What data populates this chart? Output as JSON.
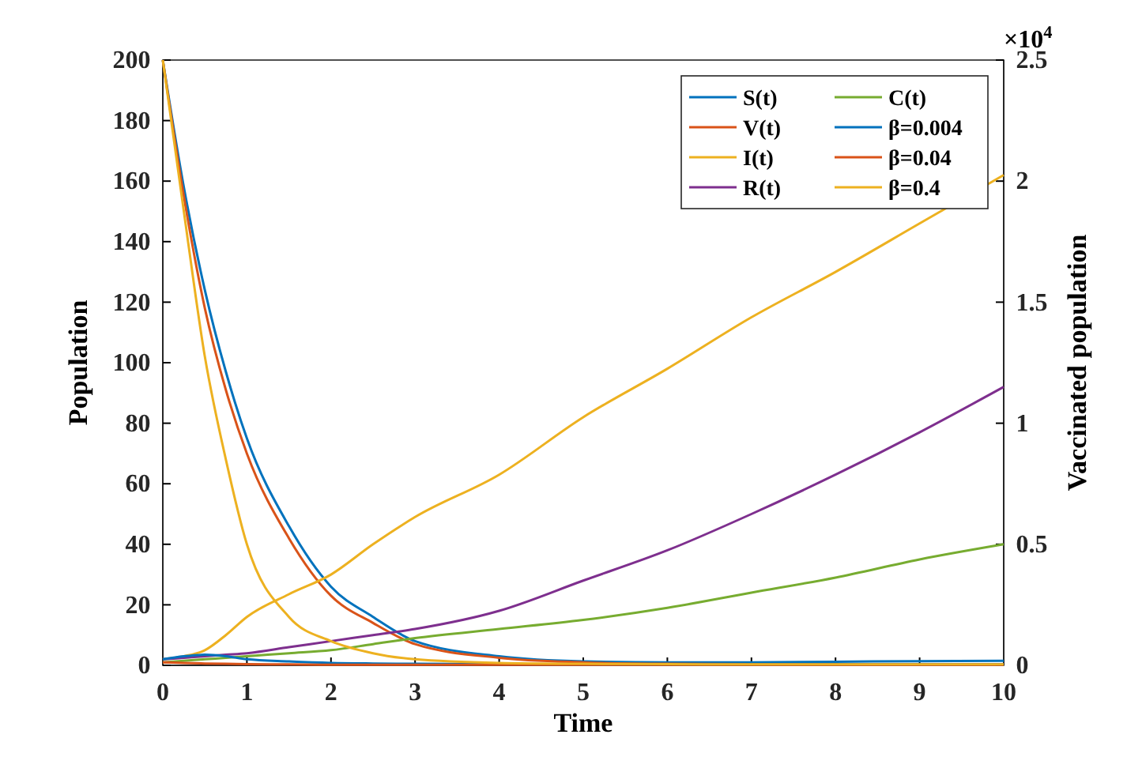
{
  "chart_data": {
    "type": "line",
    "xlabel": "Time",
    "ylabel": "Population",
    "y2label": "Vaccinated population",
    "annotations": [
      "×10$^{4}$"
    ],
    "x": [
      0,
      0.25,
      0.5,
      0.75,
      1,
      1.5,
      2,
      2.5,
      3,
      4,
      5,
      6,
      7,
      8,
      9,
      10
    ],
    "xlim": [
      0,
      10
    ],
    "xticks": [
      0,
      1,
      2,
      3,
      4,
      5,
      6,
      7,
      8,
      9,
      10
    ],
    "ylim": [
      0,
      200
    ],
    "yticks": [
      0,
      20,
      40,
      60,
      80,
      100,
      120,
      140,
      160,
      180,
      200
    ],
    "y2lim": [
      0,
      2.5
    ],
    "y2ticks": [
      0,
      0.5,
      1,
      1.5,
      2,
      2.5
    ],
    "grid": false,
    "legend": "top right",
    "marker": "none",
    "line_style": "solid",
    "series": [
      {
        "name": "S(t)",
        "color": "#0072bd",
        "values": [
          200,
          158,
          124,
          97,
          75,
          46,
          26,
          16,
          8,
          3,
          1.3,
          1,
          1,
          1.2,
          1.4,
          1.5
        ]
      },
      {
        "name": "V(t)",
        "color": "#d95319",
        "values": [
          200,
          155,
          118,
          91,
          70,
          42,
          23,
          14,
          7,
          2.5,
          1,
          0.5,
          0.4,
          0.3,
          0.3,
          0.3
        ]
      },
      {
        "name": "I(t)",
        "color": "#edb120",
        "values": [
          2,
          3,
          5,
          10,
          16,
          23.5,
          30,
          40,
          49,
          63,
          82,
          98,
          115,
          130,
          146,
          162
        ]
      },
      {
        "name": "R(t)",
        "color": "#7e2f8e",
        "values": [
          2,
          2.5,
          3,
          3.5,
          4,
          6,
          8,
          10,
          12,
          18,
          28,
          38,
          50,
          63,
          77,
          92
        ]
      },
      {
        "name": "C(t)",
        "color": "#77ac30",
        "values": [
          1,
          1.5,
          2,
          2.5,
          3,
          4,
          5,
          7,
          9,
          12,
          15,
          19,
          24,
          29,
          35,
          40
        ]
      },
      {
        "name": "β=0.004",
        "color": "#0072bd",
        "values": [
          2,
          3,
          3.5,
          3,
          2,
          1.3,
          0.8,
          0.6,
          0.5,
          0.4,
          0.3,
          0.3,
          0.3,
          0.3,
          0.3,
          0.3
        ]
      },
      {
        "name": "β=0.04",
        "color": "#d95319",
        "values": [
          1,
          0.8,
          0.6,
          0.5,
          0.4,
          0.3,
          0.2,
          0.2,
          0.2,
          0.2,
          0.2,
          0.2,
          0.2,
          0.2,
          0.2,
          0.2
        ]
      },
      {
        "name": "β=0.4",
        "color": "#edb120",
        "values": [
          200,
          150,
          102,
          68,
          40,
          16,
          8,
          4,
          2,
          0.8,
          0.5,
          0.4,
          0.3,
          0.3,
          0.3,
          0.3
        ]
      }
    ]
  }
}
